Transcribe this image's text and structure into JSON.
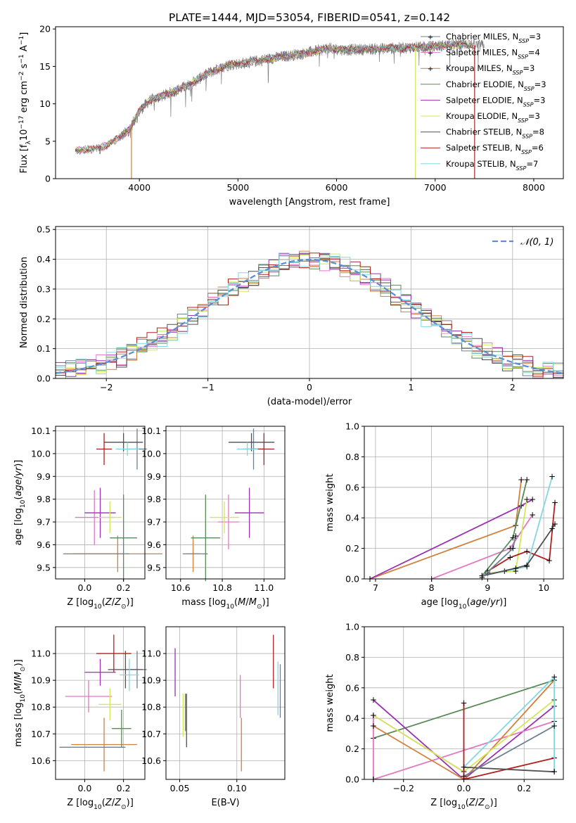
{
  "figure_title": "PLATE=1444, MJD=53054, FIBERID=0541, z=0.142",
  "colors": {
    "Chabrier MILES": "#708090",
    "Salpeter MILES": "#e377c2",
    "Kroupa MILES": "#d2813c",
    "Chabrier ELODIE": "#5a8a5a",
    "Salpeter ELODIE": "#9b30b0",
    "Kroupa ELODIE": "#d4e857",
    "Chabrier STELIB": "#505050",
    "Salpeter STELIB": "#b22020",
    "Kroupa STELIB": "#80d8e0",
    "gaussian": "#5b8fd6",
    "data": "#808080"
  },
  "chart_data": [
    {
      "id": "spectrum",
      "type": "line",
      "title": "PLATE=1444, MJD=53054, FIBERID=0541, z=0.142",
      "xlabel": "wavelength [Angstrom, rest frame]",
      "ylabel": "Flux [f_λ10^-17 erg cm^-2 s^-1 A^-1]",
      "xlim": [
        3150,
        8300
      ],
      "ylim": [
        0,
        20.3
      ],
      "xticks": [
        4000,
        5000,
        6000,
        7000,
        8000
      ],
      "yticks": [
        0,
        5,
        10,
        15,
        20
      ],
      "grid": false,
      "legend_position": "top-right",
      "series": [
        {
          "name": "Chabrier MILES, N_SSP=3"
        },
        {
          "name": "Salpeter MILES, N_SSP=4"
        },
        {
          "name": "Kroupa MILES, N_SSP=3"
        },
        {
          "name": "Chabrier ELODIE, N_SSP=3"
        },
        {
          "name": "Salpeter ELODIE, N_SSP=3"
        },
        {
          "name": "Kroupa ELODIE, N_SSP=3"
        },
        {
          "name": "Chabrier STELIB, N_SSP=8"
        },
        {
          "name": "Salpeter STELIB, N_SSP=6"
        },
        {
          "name": "Kroupa STELIB, N_SSP=7"
        }
      ],
      "continuum": [
        [
          3350,
          3.8
        ],
        [
          3500,
          3.9
        ],
        [
          3650,
          4.3
        ],
        [
          3800,
          5.5
        ],
        [
          3900,
          6.6
        ],
        [
          4000,
          9.0
        ],
        [
          4100,
          10.4
        ],
        [
          4300,
          11.4
        ],
        [
          4500,
          12.5
        ],
        [
          4700,
          14.1
        ],
        [
          4900,
          15.2
        ],
        [
          5100,
          15.5
        ],
        [
          5300,
          16.0
        ],
        [
          5500,
          16.4
        ],
        [
          5700,
          16.8
        ],
        [
          5900,
          17.4
        ],
        [
          6100,
          17.2
        ],
        [
          6300,
          17.3
        ],
        [
          6500,
          17.4
        ],
        [
          6700,
          17.5
        ],
        [
          6900,
          17.6
        ],
        [
          7100,
          17.8
        ],
        [
          7300,
          18.0
        ],
        [
          7400,
          17.8
        ]
      ],
      "data_range": [
        3800,
        7500
      ],
      "model_range": [
        3350,
        7400
      ],
      "vertical_drops": [
        {
          "x": 3600,
          "min": 3.3
        },
        {
          "x": 3920,
          "min": 0
        },
        {
          "x": 6800,
          "min": 0
        },
        {
          "x": 7400,
          "min": 0
        }
      ]
    },
    {
      "id": "residuals",
      "type": "bar",
      "xlabel": "(data-model)/error",
      "ylabel": "Normed distribution",
      "xlim": [
        -2.5,
        2.5
      ],
      "ylim": [
        0,
        0.51
      ],
      "xticks": [
        -2,
        -1,
        0,
        1,
        2
      ],
      "yticks": [
        0,
        0.1,
        0.2,
        0.3,
        0.4,
        0.5
      ],
      "grid": true,
      "legend_position": "top-right",
      "legend_label": "𝒩(0, 1)",
      "bin_width": 0.1,
      "n_histograms": 9
    },
    {
      "id": "age_Z",
      "type": "scatter",
      "xlabel": "Z [log10(Z/Z⊙)]",
      "ylabel": "age  [log10(age/yr)]",
      "xlim": [
        -0.15,
        0.31
      ],
      "ylim": [
        9.45,
        10.12
      ],
      "xticks": [
        0.0,
        0.2
      ],
      "yticks": [
        9.5,
        9.6,
        9.7,
        9.8,
        9.9,
        10.0,
        10.1
      ],
      "grid": true,
      "points": [
        {
          "x": 0.27,
          "y": 10.02,
          "xerr": 0.05,
          "yerr": 0.09,
          "c": "Chabrier MILES"
        },
        {
          "x": 0.05,
          "y": 9.72,
          "xerr": 0.1,
          "yerr": 0.12,
          "c": "Salpeter MILES"
        },
        {
          "x": 0.17,
          "y": 9.56,
          "xerr": 0.23,
          "yerr": 0.08,
          "c": "Kroupa MILES"
        },
        {
          "x": 0.2,
          "y": 9.63,
          "xerr": 0.07,
          "yerr": 0.19,
          "c": "Chabrier ELODIE"
        },
        {
          "x": 0.08,
          "y": 9.74,
          "xerr": 0.08,
          "yerr": 0.11,
          "c": "Salpeter ELODIE"
        },
        {
          "x": 0.13,
          "y": 9.72,
          "xerr": 0.06,
          "yerr": 0.07,
          "c": "Kroupa ELODIE"
        },
        {
          "x": 0.2,
          "y": 10.05,
          "xerr": 0.1,
          "yerr": 0.04,
          "c": "Chabrier STELIB"
        },
        {
          "x": 0.1,
          "y": 10.02,
          "xerr": 0.04,
          "yerr": 0.07,
          "c": "Salpeter STELIB"
        },
        {
          "x": 0.22,
          "y": 10.02,
          "xerr": 0.06,
          "yerr": 0.03,
          "c": "Kroupa STELIB"
        },
        {
          "x": 0.06,
          "y": 9.56,
          "xerr": 0.17,
          "yerr": 0.0,
          "c": "Chabrier MILES"
        }
      ]
    },
    {
      "id": "age_mass",
      "type": "scatter",
      "xlabel": "mass [log10(M/M⊙)]",
      "ylabel": "",
      "xlim": [
        10.53,
        11.1
      ],
      "ylim": [
        9.45,
        10.12
      ],
      "xticks": [
        10.6,
        10.8,
        11.0
      ],
      "yticks": [
        9.5,
        9.6,
        9.7,
        9.8,
        9.9,
        10.0,
        10.1
      ],
      "grid": true,
      "points": [
        {
          "x": 10.95,
          "y": 10.02,
          "xerr": 0.05,
          "yerr": 0.09,
          "c": "Chabrier MILES"
        },
        {
          "x": 10.83,
          "y": 9.7,
          "xerr": 0.05,
          "yerr": 0.12,
          "c": "Salpeter MILES"
        },
        {
          "x": 10.66,
          "y": 9.56,
          "xerr": 0.03,
          "yerr": 0.08,
          "c": "Kroupa MILES"
        },
        {
          "x": 10.72,
          "y": 9.63,
          "xerr": 0.07,
          "yerr": 0.19,
          "c": "Chabrier ELODIE"
        },
        {
          "x": 10.93,
          "y": 9.74,
          "xerr": 0.07,
          "yerr": 0.11,
          "c": "Salpeter ELODIE"
        },
        {
          "x": 10.81,
          "y": 9.72,
          "xerr": 0.07,
          "yerr": 0.07,
          "c": "Kroupa ELODIE"
        },
        {
          "x": 10.94,
          "y": 10.05,
          "xerr": 0.11,
          "yerr": 0.04,
          "c": "Chabrier STELIB"
        },
        {
          "x": 11.0,
          "y": 10.02,
          "xerr": 0.05,
          "yerr": 0.07,
          "c": "Salpeter STELIB"
        },
        {
          "x": 10.92,
          "y": 10.02,
          "xerr": 0.05,
          "yerr": 0.03,
          "c": "Kroupa STELIB"
        },
        {
          "x": 10.67,
          "y": 9.56,
          "xerr": 0.06,
          "yerr": 0.0,
          "c": "Chabrier MILES"
        }
      ]
    },
    {
      "id": "weight_age",
      "type": "line",
      "xlabel": "age  [log10(age/yr)]",
      "ylabel": "mass weight",
      "xlim": [
        6.8,
        10.35
      ],
      "ylim": [
        0,
        1
      ],
      "xticks": [
        7,
        8,
        9,
        10
      ],
      "yticks": [
        0,
        0.2,
        0.4,
        0.6,
        0.8,
        1.0
      ],
      "grid": true,
      "series": [
        {
          "c": "Kroupa MILES",
          "pts": [
            [
              6.9,
              0
            ],
            [
              9.5,
              0.35
            ],
            [
              9.6,
              0.65
            ]
          ]
        },
        {
          "c": "Salpeter ELODIE",
          "pts": [
            [
              6.9,
              0
            ],
            [
              9.6,
              0.48
            ],
            [
              9.8,
              0.52
            ]
          ]
        },
        {
          "c": "Salpeter MILES",
          "pts": [
            [
              8.0,
              0
            ],
            [
              9.4,
              0.2
            ],
            [
              9.8,
              0.42
            ]
          ]
        },
        {
          "c": "Chabrier ELODIE",
          "pts": [
            [
              8.9,
              0.02
            ],
            [
              9.45,
              0.27
            ],
            [
              9.7,
              0.65
            ]
          ]
        },
        {
          "c": "Kroupa ELODIE",
          "pts": [
            [
              9.0,
              0.04
            ],
            [
              9.5,
              0.05
            ],
            [
              9.7,
              0.52
            ]
          ]
        },
        {
          "c": "Salpeter STELIB",
          "pts": [
            [
              9.0,
              0.05
            ],
            [
              9.4,
              0.14
            ],
            [
              9.7,
              0.18
            ],
            [
              10.1,
              0.12
            ],
            [
              10.2,
              0.5
            ]
          ]
        },
        {
          "c": "Kroupa STELIB",
          "pts": [
            [
              8.9,
              0.02
            ],
            [
              9.3,
              0.05
            ],
            [
              9.7,
              0.08
            ],
            [
              10.15,
              0.67
            ]
          ]
        },
        {
          "c": "Chabrier STELIB",
          "pts": [
            [
              8.9,
              0.02
            ],
            [
              9.5,
              0.07
            ],
            [
              9.7,
              0.09
            ],
            [
              10.15,
              0.33
            ],
            [
              10.2,
              0.36
            ]
          ]
        },
        {
          "c": "Chabrier MILES",
          "pts": [
            [
              8.9,
              0.01
            ],
            [
              9.45,
              0.2
            ],
            [
              9.5,
              0.28
            ]
          ]
        }
      ]
    },
    {
      "id": "mass_Z",
      "type": "scatter",
      "xlabel": "Z [log10(Z/Z⊙)]",
      "ylabel": "mass [log10(M/M⊙)]",
      "xlim": [
        -0.15,
        0.31
      ],
      "ylim": [
        10.53,
        11.1
      ],
      "xticks": [
        0.0,
        0.2
      ],
      "yticks": [
        10.6,
        10.7,
        10.8,
        10.9,
        11.0
      ],
      "grid": true,
      "points": [
        {
          "x": 0.27,
          "y": 10.94,
          "xerr": 0.05,
          "yerr": 0.07,
          "c": "Chabrier MILES"
        },
        {
          "x": 0.02,
          "y": 10.84,
          "xerr": 0.12,
          "yerr": 0.06,
          "c": "Salpeter MILES"
        },
        {
          "x": 0.1,
          "y": 10.66,
          "xerr": 0.17,
          "yerr": 0.1,
          "c": "Kroupa MILES"
        },
        {
          "x": 0.19,
          "y": 10.72,
          "xerr": 0.05,
          "yerr": 0.07,
          "c": "Chabrier ELODIE"
        },
        {
          "x": 0.08,
          "y": 10.93,
          "xerr": 0.08,
          "yerr": 0.05,
          "c": "Salpeter ELODIE"
        },
        {
          "x": 0.13,
          "y": 10.81,
          "xerr": 0.06,
          "yerr": 0.06,
          "c": "Kroupa ELODIE"
        },
        {
          "x": 0.21,
          "y": 10.94,
          "xerr": 0.09,
          "yerr": 0.07,
          "c": "Chabrier STELIB"
        },
        {
          "x": 0.15,
          "y": 11.0,
          "xerr": 0.09,
          "yerr": 0.07,
          "c": "Salpeter STELIB"
        },
        {
          "x": 0.23,
          "y": 10.92,
          "xerr": 0.05,
          "yerr": 0.06,
          "c": "Kroupa STELIB"
        },
        {
          "x": 0.04,
          "y": 10.65,
          "xerr": 0.17,
          "yerr": 0.0,
          "c": "Chabrier MILES"
        }
      ]
    },
    {
      "id": "mass_ebv",
      "type": "scatter",
      "xlabel": "E(B-V)",
      "ylabel": "",
      "xlim": [
        0.038,
        0.142
      ],
      "ylim": [
        10.53,
        11.1
      ],
      "xticks": [
        0.05,
        0.1
      ],
      "yticks": [
        10.6,
        10.7,
        10.8,
        10.9,
        11.0
      ],
      "grid": true,
      "points": [
        {
          "x": 0.138,
          "y": 10.86,
          "xerr": 0,
          "yerr": 0.1,
          "c": "Chabrier MILES"
        },
        {
          "x": 0.103,
          "y": 10.84,
          "xerr": 0,
          "yerr": 0.08,
          "c": "Salpeter MILES"
        },
        {
          "x": 0.104,
          "y": 10.66,
          "xerr": 0,
          "yerr": 0.1,
          "c": "Kroupa MILES"
        },
        {
          "x": 0.055,
          "y": 10.78,
          "xerr": 0,
          "yerr": 0.07,
          "c": "Chabrier ELODIE"
        },
        {
          "x": 0.046,
          "y": 10.93,
          "xerr": 0,
          "yerr": 0.09,
          "c": "Salpeter ELODIE"
        },
        {
          "x": 0.053,
          "y": 10.77,
          "xerr": 0,
          "yerr": 0.08,
          "c": "Kroupa ELODIE"
        },
        {
          "x": 0.056,
          "y": 10.75,
          "xerr": 0,
          "yerr": 0.1,
          "c": "Chabrier STELIB"
        },
        {
          "x": 0.132,
          "y": 10.97,
          "xerr": 0,
          "yerr": 0.1,
          "c": "Salpeter STELIB"
        },
        {
          "x": 0.136,
          "y": 10.87,
          "xerr": 0,
          "yerr": 0.1,
          "c": "Kroupa STELIB"
        }
      ]
    },
    {
      "id": "weight_Z",
      "type": "line",
      "xlabel": "Z [log10(Z/Z⊙)]",
      "ylabel": "mass weight",
      "xlim": [
        -0.33,
        0.33
      ],
      "ylim": [
        0,
        1
      ],
      "xticks": [
        -0.2,
        0.0,
        0.2
      ],
      "yticks": [
        0,
        0.2,
        0.4,
        0.6,
        0.8,
        1.0
      ],
      "grid": true,
      "series": [
        {
          "c": "Chabrier ELODIE",
          "pts": [
            [
              -0.3,
              0.27
            ],
            [
              0.3,
              0.65
            ]
          ]
        },
        {
          "c": "Salpeter ELODIE",
          "pts": [
            [
              -0.3,
              0.52
            ],
            [
              0.0,
              0.0
            ],
            [
              0.3,
              0.48
            ]
          ]
        },
        {
          "c": "Salpeter MILES",
          "pts": [
            [
              -0.3,
              0.0
            ],
            [
              -0.3,
              0.42
            ],
            [
              0.0,
              0.05
            ]
          ]
        },
        {
          "c": "Salpeter MILES",
          "pts": [
            [
              -0.3,
              0.0
            ],
            [
              0.3,
              0.38
            ]
          ]
        },
        {
          "c": "Kroupa MILES",
          "pts": [
            [
              -0.3,
              0.35
            ],
            [
              0.0,
              0.0
            ],
            [
              0.3,
              0.65
            ]
          ]
        },
        {
          "c": "Kroupa ELODIE",
          "pts": [
            [
              -0.3,
              0.42
            ],
            [
              0.0,
              0.05
            ],
            [
              0.3,
              0.52
            ]
          ]
        },
        {
          "c": "Salpeter STELIB",
          "pts": [
            [
              0.0,
              0.5
            ],
            [
              0.0,
              0.0
            ],
            [
              0.3,
              0.14
            ]
          ]
        },
        {
          "c": "Kroupa STELIB",
          "pts": [
            [
              0.0,
              0.08
            ],
            [
              0.3,
              0.67
            ],
            [
              0.3,
              0.05
            ]
          ]
        },
        {
          "c": "Chabrier STELIB",
          "pts": [
            [
              0.0,
              0.08
            ],
            [
              0.3,
              0.05
            ]
          ]
        },
        {
          "c": "Chabrier MILES",
          "pts": [
            [
              0.0,
              0.02
            ],
            [
              0.3,
              0.35
            ]
          ]
        }
      ]
    }
  ]
}
